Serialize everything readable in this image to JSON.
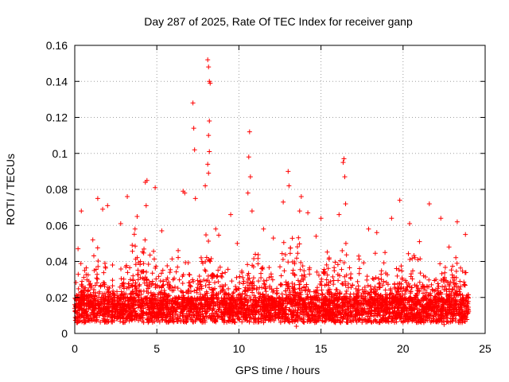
{
  "chart_data": {
    "type": "scatter",
    "title": "Day 287 of 2025, Rate Of TEC Index for receiver ganp",
    "xlabel": "GPS time / hours",
    "ylabel": "ROTI / TECUs",
    "xlim": [
      0,
      25
    ],
    "ylim": [
      0,
      0.16
    ],
    "x_ticks": [
      "0",
      "5",
      "10",
      "15",
      "20",
      "25"
    ],
    "y_ticks": [
      "0",
      "0.02",
      "0.04",
      "0.06",
      "0.08",
      "0.1",
      "0.12",
      "0.14",
      "0.16"
    ],
    "grid": true,
    "marker": "plus",
    "color": "#ff0000",
    "series": [
      {
        "name": "ROTI",
        "points": [
          [
            8.1,
            0.152
          ],
          [
            8.15,
            0.148
          ],
          [
            8.2,
            0.14
          ],
          [
            8.25,
            0.139
          ],
          [
            7.2,
            0.128
          ],
          [
            8.2,
            0.118
          ],
          [
            7.25,
            0.114
          ],
          [
            10.65,
            0.112
          ],
          [
            8.15,
            0.11
          ],
          [
            8.2,
            0.101
          ],
          [
            7.3,
            0.102
          ],
          [
            10.6,
            0.098
          ],
          [
            16.4,
            0.097
          ],
          [
            16.35,
            0.095
          ],
          [
            8.1,
            0.094
          ],
          [
            13.0,
            0.09
          ],
          [
            8.15,
            0.089
          ],
          [
            16.45,
            0.087
          ],
          [
            10.7,
            0.087
          ],
          [
            4.4,
            0.085
          ],
          [
            4.3,
            0.084
          ],
          [
            7.95,
            0.082
          ],
          [
            13.05,
            0.082
          ],
          [
            4.9,
            0.081
          ],
          [
            6.6,
            0.079
          ],
          [
            10.55,
            0.078
          ],
          [
            6.7,
            0.078
          ],
          [
            3.2,
            0.076
          ],
          [
            13.8,
            0.076
          ],
          [
            1.4,
            0.075
          ],
          [
            7.35,
            0.075
          ],
          [
            19.8,
            0.074
          ],
          [
            12.7,
            0.073
          ],
          [
            21.6,
            0.072
          ],
          [
            16.5,
            0.072
          ],
          [
            4.35,
            0.071
          ],
          [
            2.0,
            0.071
          ],
          [
            1.7,
            0.069
          ],
          [
            10.8,
            0.068
          ],
          [
            0.4,
            0.068
          ],
          [
            13.7,
            0.068
          ],
          [
            14.2,
            0.067
          ],
          [
            16.1,
            0.066
          ],
          [
            9.5,
            0.066
          ],
          [
            3.8,
            0.065
          ],
          [
            15.0,
            0.064
          ],
          [
            19.3,
            0.064
          ],
          [
            22.3,
            0.064
          ],
          [
            23.3,
            0.062
          ],
          [
            2.8,
            0.061
          ],
          [
            20.4,
            0.061
          ],
          [
            17.9,
            0.058
          ],
          [
            11.5,
            0.058
          ],
          [
            5.3,
            0.057
          ],
          [
            18.4,
            0.056
          ],
          [
            23.8,
            0.055
          ],
          [
            14.7,
            0.054
          ],
          [
            12.1,
            0.053
          ],
          [
            1.1,
            0.052
          ],
          [
            21.0,
            0.051
          ],
          [
            9.9,
            0.05
          ],
          [
            3.5,
            0.049
          ],
          [
            22.8,
            0.048
          ],
          [
            0.2,
            0.047
          ],
          [
            6.3,
            0.046
          ],
          [
            18.9,
            0.045
          ],
          [
            11.0,
            0.044
          ],
          [
            17.3,
            0.043
          ],
          [
            15.5,
            0.042
          ],
          [
            20.9,
            0.041
          ],
          [
            4.0,
            0.04
          ],
          [
            7.8,
            0.039
          ],
          [
            2.3,
            0.038
          ],
          [
            12.5,
            0.037
          ],
          [
            19.6,
            0.036
          ],
          [
            0.6,
            0.035
          ],
          [
            5.8,
            0.034
          ],
          [
            14.3,
            0.033
          ],
          [
            8.7,
            0.032
          ],
          [
            16.8,
            0.031
          ],
          [
            22.0,
            0.03
          ],
          [
            10.3,
            0.029
          ],
          [
            1.8,
            0.028
          ],
          [
            13.4,
            0.027
          ],
          [
            23.5,
            0.026
          ],
          [
            3.0,
            0.025
          ],
          [
            6.9,
            0.024
          ],
          [
            18.2,
            0.023
          ],
          [
            9.2,
            0.022
          ],
          [
            15.9,
            0.021
          ],
          [
            21.3,
            0.02
          ],
          [
            4.7,
            0.019
          ],
          [
            11.8,
            0.018
          ],
          [
            0.9,
            0.017
          ],
          [
            17.6,
            0.016
          ],
          [
            20.1,
            0.015
          ],
          [
            7.5,
            0.014
          ],
          [
            2.6,
            0.013
          ],
          [
            14.9,
            0.012
          ],
          [
            23.0,
            0.011
          ],
          [
            5.5,
            0.01
          ],
          [
            12.9,
            0.009
          ],
          [
            19.0,
            0.008
          ],
          [
            8.4,
            0.007
          ],
          [
            16.2,
            0.006
          ],
          [
            22.5,
            0.005
          ],
          [
            13.5,
            0.004
          ],
          [
            4.1,
            0.012
          ],
          [
            10.9,
            0.013
          ],
          [
            18.7,
            0.014
          ]
        ]
      }
    ]
  }
}
